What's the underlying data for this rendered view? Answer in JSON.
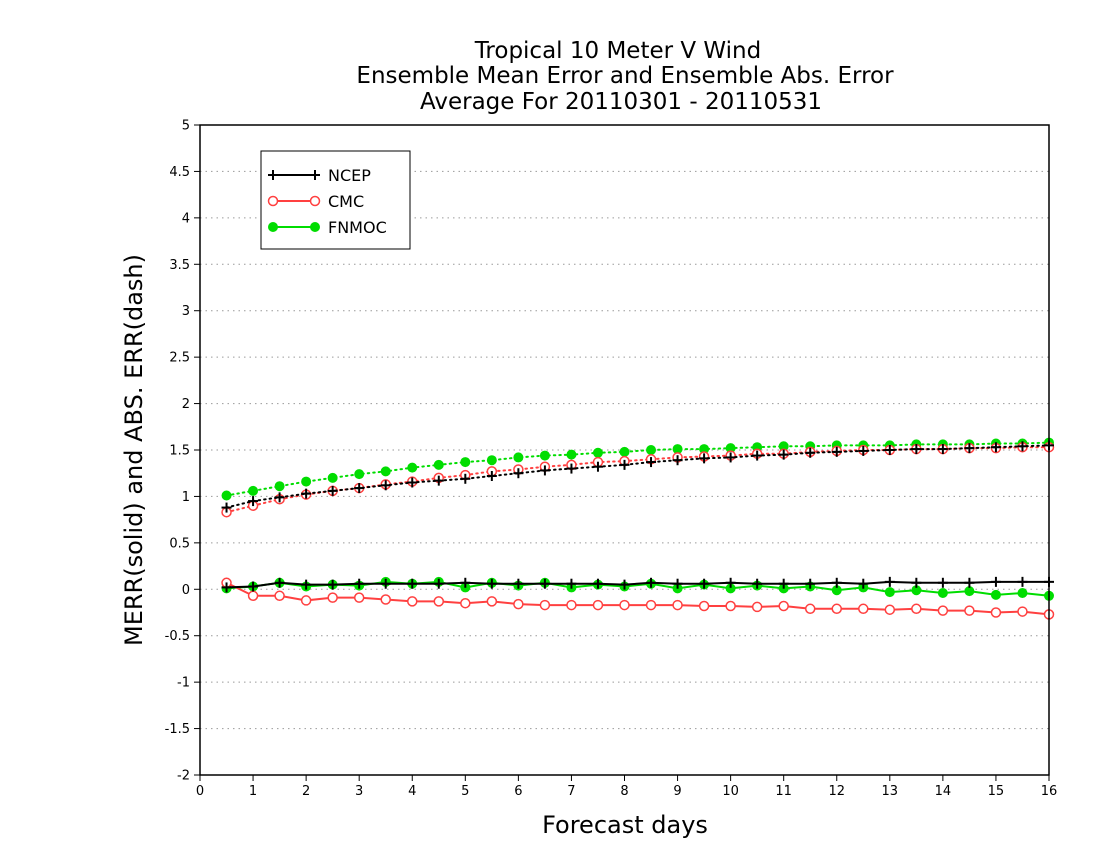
{
  "chart_data": {
    "type": "line",
    "title_lines": [
      "Tropical 10 Meter V Wind",
      "Ensemble Mean Error and Ensemble Abs. Error",
      "Average For 20110301 - 20110531"
    ],
    "xlabel": "Forecast days",
    "ylabel": "MERR(solid) and ABS. ERR(dash)",
    "xlim": [
      0,
      16
    ],
    "ylim": [
      -2,
      5
    ],
    "x_ticks": [
      0,
      1,
      2,
      3,
      4,
      5,
      6,
      7,
      8,
      9,
      10,
      11,
      12,
      13,
      14,
      15,
      16
    ],
    "y_ticks": [
      -2,
      -1.5,
      -1,
      -0.5,
      0,
      0.5,
      1,
      1.5,
      2,
      2.5,
      3,
      3.5,
      4,
      4.5,
      5
    ],
    "y_tick_labels": [
      "-2",
      "-1.5",
      "-1",
      "-0.5",
      "0",
      "0.5",
      "1",
      "1.5",
      "2",
      "2.5",
      "3",
      "3.5",
      "4",
      "4.5",
      "5"
    ],
    "grid": true,
    "legend_position": "top-left",
    "x": [
      0.5,
      1,
      1.5,
      2,
      2.5,
      3,
      3.5,
      4,
      4.5,
      5,
      5.5,
      6,
      6.5,
      7,
      7.5,
      8,
      8.5,
      9,
      9.5,
      10,
      10.5,
      11,
      11.5,
      12,
      12.5,
      13,
      13.5,
      14,
      14.5,
      15,
      15.5,
      16
    ],
    "series": [
      {
        "name": "NCEP",
        "color": "#000000",
        "marker": "plus",
        "merr": [
          0.02,
          0.03,
          0.07,
          0.05,
          0.05,
          0.06,
          0.06,
          0.06,
          0.06,
          0.07,
          0.06,
          0.06,
          0.06,
          0.06,
          0.06,
          0.05,
          0.07,
          0.06,
          0.06,
          0.07,
          0.06,
          0.06,
          0.06,
          0.07,
          0.06,
          0.08,
          0.07,
          0.07,
          0.07,
          0.08,
          0.08,
          0.08
        ],
        "abs_err": [
          0.88,
          0.95,
          0.99,
          1.03,
          1.06,
          1.09,
          1.12,
          1.15,
          1.17,
          1.19,
          1.22,
          1.25,
          1.28,
          1.3,
          1.32,
          1.34,
          1.37,
          1.39,
          1.41,
          1.42,
          1.44,
          1.45,
          1.47,
          1.48,
          1.49,
          1.5,
          1.51,
          1.51,
          1.52,
          1.53,
          1.54,
          1.55
        ]
      },
      {
        "name": "CMC",
        "color": "#ff4040",
        "marker": "open-circle",
        "merr": [
          0.07,
          -0.07,
          -0.07,
          -0.12,
          -0.09,
          -0.09,
          -0.11,
          -0.13,
          -0.13,
          -0.15,
          -0.13,
          -0.16,
          -0.17,
          -0.17,
          -0.17,
          -0.17,
          -0.17,
          -0.17,
          -0.18,
          -0.18,
          -0.19,
          -0.18,
          -0.21,
          -0.21,
          -0.21,
          -0.22,
          -0.21,
          -0.23,
          -0.23,
          -0.25,
          -0.24,
          -0.27
        ],
        "abs_err": [
          0.83,
          0.9,
          0.97,
          1.02,
          1.06,
          1.09,
          1.13,
          1.16,
          1.2,
          1.23,
          1.27,
          1.29,
          1.32,
          1.34,
          1.37,
          1.38,
          1.4,
          1.42,
          1.43,
          1.44,
          1.46,
          1.46,
          1.48,
          1.49,
          1.5,
          1.5,
          1.51,
          1.51,
          1.52,
          1.52,
          1.53,
          1.53
        ]
      },
      {
        "name": "FNMOC",
        "color": "#00dd00",
        "marker": "filled-circle",
        "merr": [
          0.01,
          0.03,
          0.07,
          0.03,
          0.05,
          0.04,
          0.08,
          0.06,
          0.08,
          0.02,
          0.07,
          0.04,
          0.07,
          0.02,
          0.05,
          0.03,
          0.06,
          0.01,
          0.05,
          0.01,
          0.04,
          0.01,
          0.03,
          -0.01,
          0.02,
          -0.03,
          -0.01,
          -0.04,
          -0.02,
          -0.06,
          -0.04,
          -0.07
        ],
        "abs_err": [
          1.01,
          1.06,
          1.11,
          1.16,
          1.2,
          1.24,
          1.27,
          1.31,
          1.34,
          1.37,
          1.39,
          1.42,
          1.44,
          1.45,
          1.47,
          1.48,
          1.5,
          1.51,
          1.51,
          1.52,
          1.53,
          1.54,
          1.54,
          1.55,
          1.55,
          1.55,
          1.56,
          1.56,
          1.56,
          1.57,
          1.57,
          1.58
        ]
      }
    ]
  }
}
